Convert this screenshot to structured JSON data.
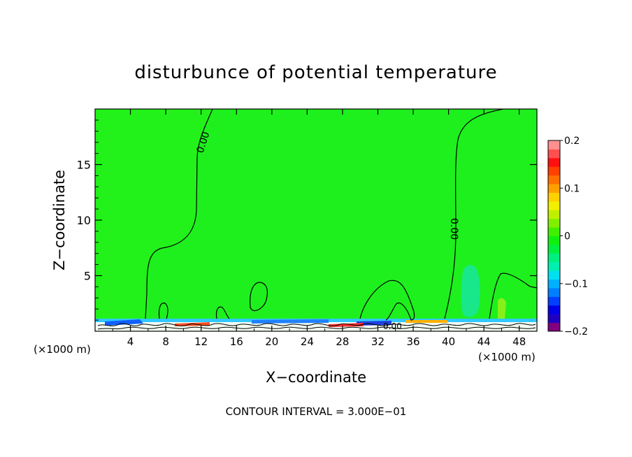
{
  "chart_data": {
    "type": "heatmap",
    "title": "disturbunce of potential temperature",
    "xlabel": "X−coordinate",
    "ylabel": "Z−coordinate",
    "x_unit_left": "(×1000 m)",
    "x_unit_right": "(×1000 m)",
    "xlim": [
      0,
      50
    ],
    "ylim": [
      0,
      20
    ],
    "x_ticks": [
      "4",
      "8",
      "12",
      "16",
      "20",
      "24",
      "28",
      "32",
      "36",
      "40",
      "44",
      "48"
    ],
    "y_ticks": [
      "5",
      "10",
      "15"
    ],
    "x_tick_values": [
      4,
      8,
      12,
      16,
      20,
      24,
      28,
      32,
      36,
      40,
      44,
      48
    ],
    "y_tick_values": [
      5,
      10,
      15
    ],
    "contour_labels": [
      "0.00",
      "0.00",
      "0.00"
    ],
    "footer": "CONTOUR INTERVAL = 3.000E−01",
    "colorbar": {
      "range": [
        -0.2,
        0.2
      ],
      "tick_labels": [
        "0.2",
        "0.1",
        "0",
        "−0.1",
        "−0.2"
      ],
      "tick_values": [
        0.2,
        0.1,
        0,
        -0.1,
        -0.2
      ],
      "colors": [
        "#800080",
        "#2000c0",
        "#0000e8",
        "#0040ff",
        "#0080ff",
        "#00b0ff",
        "#00e0f0",
        "#00f0b0",
        "#00f080",
        "#00f040",
        "#10f010",
        "#40f000",
        "#80f000",
        "#c0f000",
        "#f0f000",
        "#ffd000",
        "#ffa000",
        "#ff7000",
        "#ff4000",
        "#ff1010",
        "#ff5050",
        "#ff9090"
      ]
    },
    "background_color": "#1ef01e",
    "grid": false
  }
}
